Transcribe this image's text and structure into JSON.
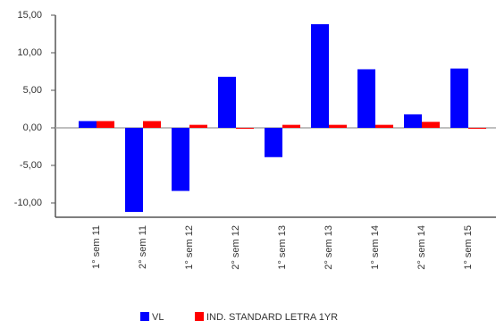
{
  "chart_data": {
    "type": "bar",
    "categories": [
      "1° sem  11",
      "2° sem  11",
      "1° sem  12",
      "2° sem  12",
      "1° sem  13",
      "2° sem  13",
      "1° sem  14",
      "2° sem  14",
      "1° sem  15"
    ],
    "series": [
      {
        "name": "VL",
        "color": "#0000ff",
        "values": [
          0.9,
          -11.2,
          -8.4,
          6.8,
          -3.9,
          13.8,
          7.8,
          1.8,
          7.9
        ]
      },
      {
        "name": "IND. STANDARD LETRA 1YR",
        "color": "#ff0000",
        "values": [
          0.9,
          0.9,
          0.4,
          -0.1,
          0.4,
          0.4,
          0.4,
          0.8,
          -0.1
        ]
      }
    ],
    "ylim": [
      -12,
      15
    ],
    "yticks": [
      {
        "value": 15,
        "label": "15,00"
      },
      {
        "value": 10,
        "label": "10,00"
      },
      {
        "value": 5,
        "label": "5,00"
      },
      {
        "value": 0,
        "label": "0,00"
      },
      {
        "value": -5,
        "label": "-5,00"
      },
      {
        "value": -10,
        "label": "-10,00"
      }
    ],
    "legend": "bottom"
  }
}
